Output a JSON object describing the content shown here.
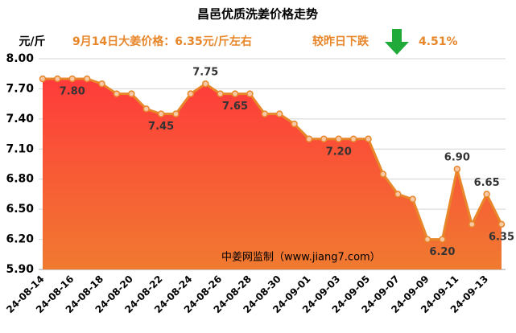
{
  "chart_data": {
    "type": "area",
    "title": "昌邑优质洗姜价格走势",
    "y_label": "元/斤",
    "annotations": {
      "price": "9月14日大姜价格：6.35元/斤左右",
      "change_text": "较昨日下跌",
      "change_value": "4.51%",
      "watermark": "中姜网监制（www.jiang7.com）"
    },
    "categories": [
      "24-08-14",
      null,
      "24-08-16",
      null,
      "24-08-18",
      null,
      "24-08-20",
      null,
      "24-08-22",
      null,
      "24-08-24",
      null,
      "24-08-26",
      null,
      "24-08-28",
      null,
      "24-08-30",
      null,
      "24-09-01",
      null,
      "24-09-03",
      null,
      "24-09-05",
      null,
      "24-09-07",
      null,
      "24-09-09",
      null,
      "24-09-11",
      null,
      "24-09-13",
      null
    ],
    "values": [
      7.8,
      7.8,
      7.8,
      7.8,
      7.75,
      7.65,
      7.65,
      7.5,
      7.45,
      7.45,
      7.65,
      7.75,
      7.65,
      7.65,
      7.65,
      7.45,
      7.45,
      7.35,
      7.2,
      7.2,
      7.2,
      7.2,
      7.2,
      6.85,
      6.65,
      6.6,
      6.2,
      6.2,
      6.9,
      6.35,
      6.65,
      6.35
    ],
    "value_labels": [
      null,
      null,
      "7.80",
      null,
      null,
      null,
      null,
      null,
      "7.45",
      null,
      null,
      "7.75",
      null,
      "7.65",
      null,
      null,
      null,
      null,
      null,
      null,
      "7.20",
      null,
      null,
      null,
      null,
      null,
      null,
      "6.20",
      "6.90",
      null,
      "6.65",
      "6.35"
    ],
    "color": "#e8862a",
    "ylim": [
      5.9,
      8.0
    ],
    "yticks": [
      {
        "value": 5.9,
        "label": "5.90"
      },
      {
        "value": 6.2,
        "label": "6.20"
      },
      {
        "value": 6.5,
        "label": "6.50"
      },
      {
        "value": 6.8,
        "label": "6.80"
      },
      {
        "value": 7.1,
        "label": "7.10"
      },
      {
        "value": 7.4,
        "label": "7.40"
      },
      {
        "value": 7.7,
        "label": "7.70"
      },
      {
        "value": 8.0,
        "label": "8.00"
      }
    ],
    "grid": true
  }
}
